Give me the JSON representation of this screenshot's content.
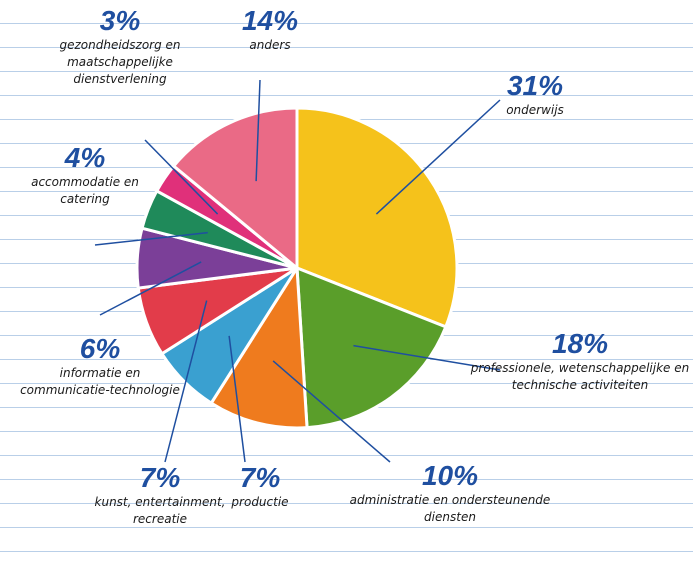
{
  "chart_data": {
    "type": "pie",
    "categories": [
      "onderwijs",
      "professionele, wetenschappelijke en technische activiteiten",
      "administratie en ondersteunende diensten",
      "productie",
      "kunst, entertainment, recreatie",
      "informatie en communicatie-technologie",
      "accommodatie en catering",
      "gezondheidszorg en maatschappelijke dienstverlening",
      "anders"
    ],
    "values": [
      31,
      18,
      10,
      7,
      7,
      6,
      4,
      3,
      14
    ],
    "value_labels": [
      "31%",
      "18%",
      "10%",
      "7%",
      "7%",
      "6%",
      "4%",
      "3%",
      "14%"
    ],
    "colors": [
      "#f5c21b",
      "#5a9e2a",
      "#ef7b1e",
      "#3aa0d0",
      "#e23c4a",
      "#7b3f98",
      "#1f8a5a",
      "#e0307a",
      "#ea6a86"
    ]
  }
}
